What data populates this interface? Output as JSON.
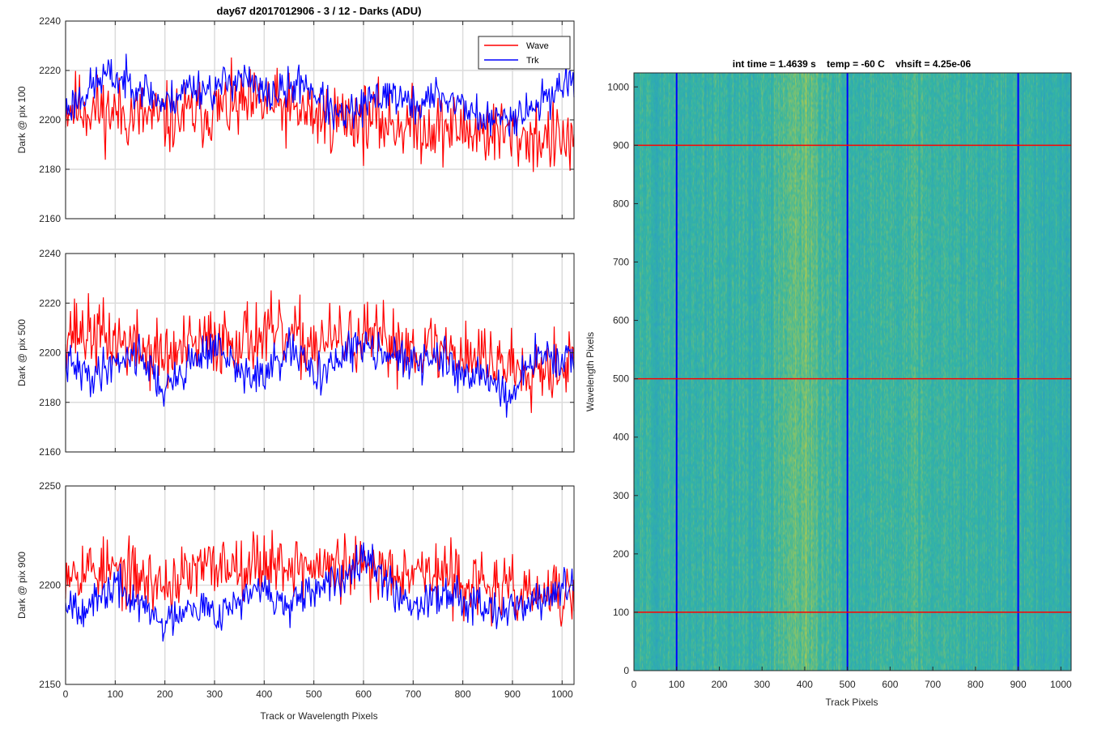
{
  "figure": {
    "main_title": "day67 d2017012906 - 3 / 12 - Darks (ADU)",
    "heatmap_title": "int time = 1.4639 s    temp = -60 C    vhsift = 4.25e-06"
  },
  "colors": {
    "wave": "#ff0000",
    "trk": "#0000ff",
    "grid": "#dcdcdc",
    "axis": "#262626",
    "heat_low": "#2a9ec4",
    "heat_mid": "#35b6a2",
    "heat_high": "#a8c853"
  },
  "chart_data": [
    {
      "type": "line",
      "title": "day67 d2017012906 - 3 / 12 - Darks (ADU)",
      "xlabel": "",
      "ylabel": "Dark @ pix 100",
      "xlim": [
        0,
        1024
      ],
      "ylim": [
        2160,
        2240
      ],
      "xticks": [
        0,
        100,
        200,
        300,
        400,
        500,
        600,
        700,
        800,
        900,
        1000
      ],
      "xtick_labels_visible": false,
      "yticks": [
        2160,
        2180,
        2200,
        2220,
        2240
      ],
      "grid": true,
      "legend": {
        "placement": "top-right",
        "entries": [
          "Wave",
          "Trk"
        ]
      },
      "series": [
        {
          "name": "Wave",
          "color": "#ff0000",
          "trend": [
            [
              0,
              2206
            ],
            [
              100,
              2203
            ],
            [
              200,
              2200
            ],
            [
              300,
              2204
            ],
            [
              400,
              2206
            ],
            [
              500,
              2202
            ],
            [
              600,
              2200
            ],
            [
              700,
              2198
            ],
            [
              800,
              2196
            ],
            [
              900,
              2194
            ],
            [
              1024,
              2191
            ]
          ],
          "noise_amplitude": 9,
          "seed": 11
        },
        {
          "name": "Trk",
          "color": "#0000ff",
          "trend": [
            [
              0,
              2204
            ],
            [
              80,
              2218
            ],
            [
              150,
              2214
            ],
            [
              200,
              2206
            ],
            [
              250,
              2214
            ],
            [
              300,
              2212
            ],
            [
              350,
              2218
            ],
            [
              400,
              2210
            ],
            [
              450,
              2212
            ],
            [
              480,
              2216
            ],
            [
              550,
              2200
            ],
            [
              600,
              2205
            ],
            [
              650,
              2212
            ],
            [
              700,
              2205
            ],
            [
              750,
              2210
            ],
            [
              800,
              2206
            ],
            [
              850,
              2199
            ],
            [
              900,
              2202
            ],
            [
              950,
              2206
            ],
            [
              1024,
              2218
            ]
          ],
          "noise_amplitude": 5,
          "seed": 23
        }
      ]
    },
    {
      "type": "line",
      "xlabel": "",
      "ylabel": "Dark @ pix 500",
      "xlim": [
        0,
        1024
      ],
      "ylim": [
        2160,
        2240
      ],
      "xticks": [
        0,
        100,
        200,
        300,
        400,
        500,
        600,
        700,
        800,
        900,
        1000
      ],
      "xtick_labels_visible": false,
      "yticks": [
        2160,
        2180,
        2200,
        2220,
        2240
      ],
      "grid": true,
      "series": [
        {
          "name": "Wave",
          "color": "#ff0000",
          "trend": [
            [
              0,
              2210
            ],
            [
              100,
              2205
            ],
            [
              200,
              2198
            ],
            [
              300,
              2205
            ],
            [
              400,
              2207
            ],
            [
              500,
              2204
            ],
            [
              600,
              2205
            ],
            [
              700,
              2203
            ],
            [
              800,
              2200
            ],
            [
              900,
              2195
            ],
            [
              1024,
              2196
            ]
          ],
          "noise_amplitude": 9,
          "seed": 37
        },
        {
          "name": "Trk",
          "color": "#0000ff",
          "trend": [
            [
              0,
              2196
            ],
            [
              50,
              2190
            ],
            [
              100,
              2197
            ],
            [
              150,
              2200
            ],
            [
              200,
              2184
            ],
            [
              250,
              2196
            ],
            [
              300,
              2203
            ],
            [
              350,
              2192
            ],
            [
              400,
              2190
            ],
            [
              450,
              2201
            ],
            [
              500,
              2192
            ],
            [
              550,
              2196
            ],
            [
              600,
              2205
            ],
            [
              650,
              2200
            ],
            [
              700,
              2195
            ],
            [
              750,
              2198
            ],
            [
              800,
              2192
            ],
            [
              850,
              2190
            ],
            [
              900,
              2182
            ],
            [
              950,
              2200
            ],
            [
              1024,
              2194
            ]
          ],
          "noise_amplitude": 5,
          "seed": 41
        }
      ]
    },
    {
      "type": "line",
      "xlabel": "Track or Wavelength Pixels",
      "ylabel": "Dark @ pix 900",
      "xlim": [
        0,
        1024
      ],
      "ylim": [
        2150,
        2250
      ],
      "xticks": [
        0,
        100,
        200,
        300,
        400,
        500,
        600,
        700,
        800,
        900,
        1000
      ],
      "xtick_labels_visible": true,
      "yticks": [
        2150,
        2200,
        2250
      ],
      "grid": true,
      "series": [
        {
          "name": "Wave",
          "color": "#ff0000",
          "trend": [
            [
              0,
              2210
            ],
            [
              100,
              2207
            ],
            [
              200,
              2200
            ],
            [
              300,
              2210
            ],
            [
              400,
              2212
            ],
            [
              500,
              2209
            ],
            [
              600,
              2208
            ],
            [
              700,
              2209
            ],
            [
              800,
              2202
            ],
            [
              900,
              2196
            ],
            [
              1024,
              2194
            ]
          ],
          "noise_amplitude": 10,
          "seed": 53
        },
        {
          "name": "Trk",
          "color": "#0000ff",
          "trend": [
            [
              0,
              2193
            ],
            [
              50,
              2188
            ],
            [
              100,
              2200
            ],
            [
              150,
              2190
            ],
            [
              200,
              2180
            ],
            [
              250,
              2192
            ],
            [
              300,
              2186
            ],
            [
              350,
              2192
            ],
            [
              400,
              2198
            ],
            [
              450,
              2188
            ],
            [
              500,
              2196
            ],
            [
              550,
              2202
            ],
            [
              600,
              2218
            ],
            [
              650,
              2200
            ],
            [
              700,
              2190
            ],
            [
              750,
              2196
            ],
            [
              800,
              2194
            ],
            [
              850,
              2190
            ],
            [
              900,
              2188
            ],
            [
              950,
              2192
            ],
            [
              1024,
              2200
            ]
          ],
          "noise_amplitude": 6,
          "seed": 67
        }
      ]
    },
    {
      "type": "heatmap",
      "title": "int time = 1.4639 s    temp = -60 C    vhsift = 4.25e-06",
      "xlabel": "Track Pixels",
      "ylabel": "Wavelength Pixels",
      "xlim": [
        0,
        1024
      ],
      "ylim": [
        0,
        1024
      ],
      "xticks": [
        0,
        100,
        200,
        300,
        400,
        500,
        600,
        700,
        800,
        900,
        1000
      ],
      "yticks": [
        0,
        100,
        200,
        300,
        400,
        500,
        600,
        700,
        800,
        900,
        1000
      ],
      "colormap": "parula",
      "bright_band_center_x": 390,
      "vertical_markers": {
        "color": "#0000ff",
        "x": [
          100,
          500,
          900
        ]
      },
      "horizontal_markers": {
        "color": "#ff0000",
        "y": [
          100,
          500,
          900
        ]
      }
    }
  ]
}
